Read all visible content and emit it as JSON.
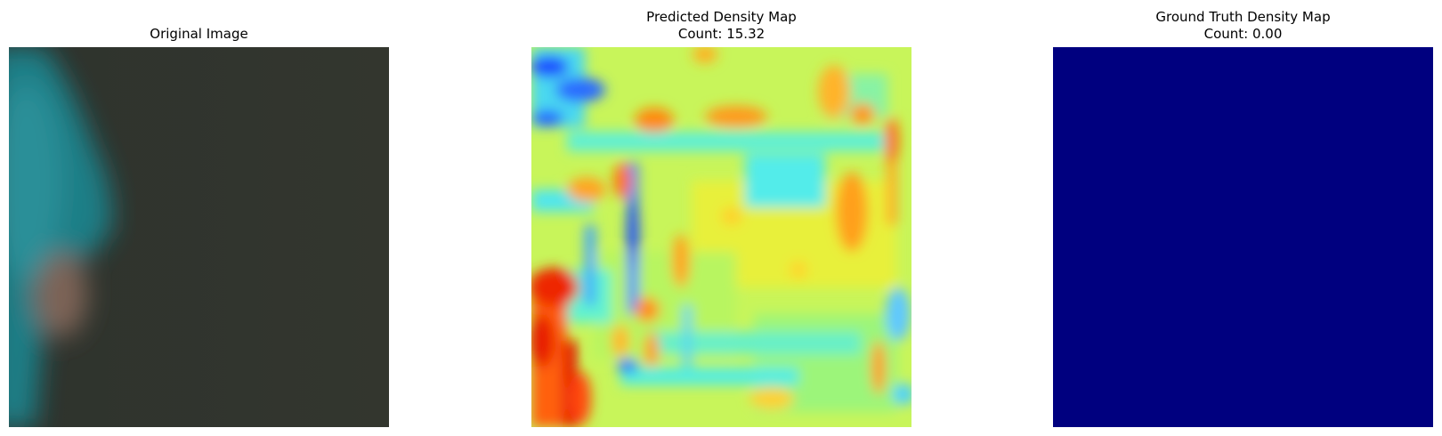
{
  "figure": {
    "panels": [
      {
        "id": "original",
        "title_lines": [
          "Original Image"
        ]
      },
      {
        "id": "predicted",
        "title_lines": [
          "Predicted Density Map",
          "Count: 15.32"
        ]
      },
      {
        "id": "ground_truth",
        "title_lines": [
          "Ground Truth Density Map",
          "Count: 0.00"
        ]
      }
    ]
  },
  "chart_data": [
    {
      "type": "image",
      "title": "Original Image",
      "description_colors": {
        "background": "#30332c",
        "subject": "#1f7f86",
        "skin": "#8a6a5c"
      }
    },
    {
      "type": "heatmap",
      "title": "Predicted Density Map\nCount: 15.32",
      "colormap": "jet",
      "count": 15.32
    },
    {
      "type": "heatmap",
      "title": "Ground Truth Density Map\nCount: 0.00",
      "colormap": "jet",
      "count": 0.0,
      "uniform_color": "#00007f"
    }
  ]
}
